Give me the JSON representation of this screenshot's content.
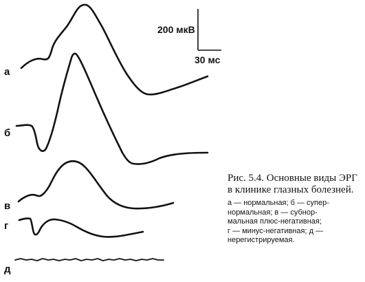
{
  "scale_bar": {
    "amplitude_label": "200 мкВ",
    "time_label": "30 мс"
  },
  "traces": [
    {
      "key": "a",
      "label": "а"
    },
    {
      "key": "b",
      "label": "б"
    },
    {
      "key": "v",
      "label": "в"
    },
    {
      "key": "g",
      "label": "г"
    },
    {
      "key": "d",
      "label": "д"
    }
  ],
  "caption": {
    "title": "Рис. 5.4. Основные виды ЭРГ в клинике глазных болезней.",
    "body": "а — нормальная; б — супер-\nнормальная; в — субнор-\nмальная плюс-негативная;\nг — минус-негативная; д —\nнерегистрируемая."
  }
}
